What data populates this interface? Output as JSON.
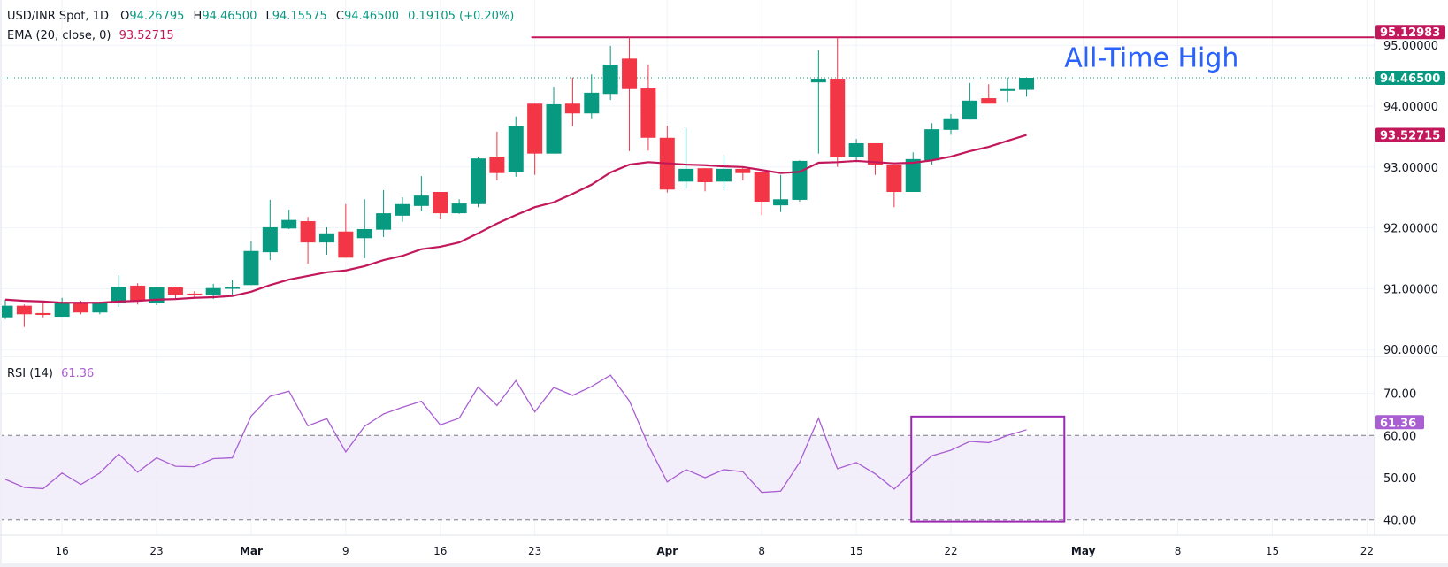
{
  "header": {
    "symbol": "USD/INR Spot, 1D",
    "ohlc": [
      {
        "key": "O",
        "value": "94.26795"
      },
      {
        "key": "H",
        "value": "94.46500"
      },
      {
        "key": "L",
        "value": "94.15575"
      },
      {
        "key": "C",
        "value": "94.46500"
      }
    ],
    "change": "0.19105 (+0.20%)"
  },
  "ema_legend": {
    "label": "EMA (20, close, 0)",
    "value": "93.52715"
  },
  "rsi_legend": {
    "label": "RSI (14)",
    "value": "61.36"
  },
  "colors": {
    "up": "#089981",
    "down": "#F23645",
    "ema": "#C2185B",
    "rsi": "#A95ED1",
    "rsi_band": "#F0ECF9",
    "box": "#9C27B0",
    "annotation_text": "#2962FF",
    "grid": "#F0F3FA"
  },
  "chart_data": {
    "type": "candlestick",
    "price_axis": {
      "ticks": [
        "95.00000",
        "94.00000",
        "93.00000",
        "92.00000",
        "91.00000",
        "90.00000"
      ],
      "range": [
        89.9,
        95.3
      ]
    },
    "rsi_axis": {
      "ticks": [
        "70.00",
        "60.00",
        "50.00",
        "40.00"
      ],
      "bands": [
        40,
        60
      ]
    },
    "x_ticks": [
      {
        "label": "16",
        "date": "Feb 16",
        "bold": false
      },
      {
        "label": "23",
        "date": "Feb 23",
        "bold": false
      },
      {
        "label": "Mar",
        "date": "Mar 2",
        "bold": true
      },
      {
        "label": "9",
        "date": "Mar 9",
        "bold": false
      },
      {
        "label": "16",
        "date": "Mar 16",
        "bold": false
      },
      {
        "label": "23",
        "date": "Mar 23",
        "bold": false
      },
      {
        "label": "Apr",
        "date": "Apr 1",
        "bold": true
      },
      {
        "label": "8",
        "date": "Apr 8",
        "bold": false
      },
      {
        "label": "15",
        "date": "Apr 15",
        "bold": false
      },
      {
        "label": "22",
        "date": "Apr 22",
        "bold": false
      },
      {
        "label": "May",
        "date": "May 1",
        "bold": true
      },
      {
        "label": "8",
        "date": "May 8",
        "bold": false
      },
      {
        "label": "15",
        "date": "May 15",
        "bold": false
      },
      {
        "label": "22",
        "date": "May 22",
        "bold": false
      }
    ],
    "candles": [
      {
        "d": "Feb 11",
        "o": 90.53,
        "h": 90.82,
        "l": 90.5,
        "c": 90.72
      },
      {
        "d": "Feb 12",
        "o": 90.72,
        "h": 90.74,
        "l": 90.37,
        "c": 90.58
      },
      {
        "d": "Feb 13",
        "o": 90.6,
        "h": 90.76,
        "l": 90.53,
        "c": 90.57
      },
      {
        "d": "Feb 16",
        "o": 90.54,
        "h": 90.85,
        "l": 90.54,
        "c": 90.77
      },
      {
        "d": "Feb 17",
        "o": 90.77,
        "h": 90.8,
        "l": 90.58,
        "c": 90.61
      },
      {
        "d": "Feb 18",
        "o": 90.61,
        "h": 90.79,
        "l": 90.58,
        "c": 90.77
      },
      {
        "d": "Feb 19",
        "o": 90.76,
        "h": 91.22,
        "l": 90.7,
        "c": 91.03
      },
      {
        "d": "Feb 20",
        "o": 91.05,
        "h": 91.09,
        "l": 90.74,
        "c": 90.8
      },
      {
        "d": "Feb 23",
        "o": 90.76,
        "h": 91.02,
        "l": 90.73,
        "c": 91.02
      },
      {
        "d": "Feb 24",
        "o": 91.02,
        "h": 91.03,
        "l": 90.83,
        "c": 90.9
      },
      {
        "d": "Feb 25",
        "o": 90.92,
        "h": 90.96,
        "l": 90.86,
        "c": 90.9
      },
      {
        "d": "Feb 26",
        "o": 90.89,
        "h": 91.08,
        "l": 90.83,
        "c": 91.01
      },
      {
        "d": "Feb 27",
        "o": 91.01,
        "h": 91.14,
        "l": 90.9,
        "c": 91.02
      },
      {
        "d": "Mar 2",
        "o": 91.06,
        "h": 91.78,
        "l": 91.06,
        "c": 91.62
      },
      {
        "d": "Mar 3",
        "o": 91.6,
        "h": 92.46,
        "l": 91.47,
        "c": 92.01
      },
      {
        "d": "Mar 4",
        "o": 91.99,
        "h": 92.3,
        "l": 91.98,
        "c": 92.13
      },
      {
        "d": "Mar 5",
        "o": 92.11,
        "h": 92.18,
        "l": 91.41,
        "c": 91.76
      },
      {
        "d": "Mar 6",
        "o": 91.76,
        "h": 92.01,
        "l": 91.56,
        "c": 91.91
      },
      {
        "d": "Mar 9",
        "o": 91.94,
        "h": 92.39,
        "l": 91.51,
        "c": 91.51
      },
      {
        "d": "Mar 10",
        "o": 91.83,
        "h": 92.47,
        "l": 91.5,
        "c": 91.98
      },
      {
        "d": "Mar 11",
        "o": 91.97,
        "h": 92.62,
        "l": 91.85,
        "c": 92.24
      },
      {
        "d": "Mar 12",
        "o": 92.2,
        "h": 92.5,
        "l": 92.1,
        "c": 92.39
      },
      {
        "d": "Mar 13",
        "o": 92.36,
        "h": 92.85,
        "l": 92.28,
        "c": 92.53
      },
      {
        "d": "Mar 16",
        "o": 92.59,
        "h": 92.59,
        "l": 92.14,
        "c": 92.24
      },
      {
        "d": "Mar 17",
        "o": 92.24,
        "h": 92.47,
        "l": 92.23,
        "c": 92.4
      },
      {
        "d": "Mar 18",
        "o": 92.39,
        "h": 93.16,
        "l": 92.34,
        "c": 93.14
      },
      {
        "d": "Mar 19",
        "o": 93.17,
        "h": 93.58,
        "l": 92.78,
        "c": 92.9
      },
      {
        "d": "Mar 20",
        "o": 92.91,
        "h": 93.83,
        "l": 92.84,
        "c": 93.67
      },
      {
        "d": "Mar 23",
        "o": 94.04,
        "h": 94.04,
        "l": 92.87,
        "c": 93.22
      },
      {
        "d": "Mar 24",
        "o": 93.22,
        "h": 94.32,
        "l": 93.22,
        "c": 94.03
      },
      {
        "d": "Mar 25",
        "o": 94.04,
        "h": 94.47,
        "l": 93.67,
        "c": 93.88
      },
      {
        "d": "Mar 26",
        "o": 93.88,
        "h": 94.52,
        "l": 93.8,
        "c": 94.22
      },
      {
        "d": "Mar 27",
        "o": 94.2,
        "h": 94.99,
        "l": 94.1,
        "c": 94.68
      },
      {
        "d": "Mar 30",
        "o": 94.78,
        "h": 95.13,
        "l": 93.26,
        "c": 94.28
      },
      {
        "d": "Mar 31",
        "o": 94.29,
        "h": 94.68,
        "l": 93.27,
        "c": 93.48
      },
      {
        "d": "Apr 1",
        "o": 93.48,
        "h": 93.68,
        "l": 92.58,
        "c": 92.63
      },
      {
        "d": "Apr 2",
        "o": 92.76,
        "h": 93.64,
        "l": 92.65,
        "c": 92.97
      },
      {
        "d": "Apr 3",
        "o": 92.98,
        "h": 92.98,
        "l": 92.6,
        "c": 92.75
      },
      {
        "d": "Apr 6",
        "o": 92.76,
        "h": 93.19,
        "l": 92.62,
        "c": 92.97
      },
      {
        "d": "Apr 7",
        "o": 92.97,
        "h": 93.0,
        "l": 92.78,
        "c": 92.9
      },
      {
        "d": "Apr 8",
        "o": 92.91,
        "h": 92.91,
        "l": 92.21,
        "c": 92.43
      },
      {
        "d": "Apr 9",
        "o": 92.37,
        "h": 92.87,
        "l": 92.26,
        "c": 92.47
      },
      {
        "d": "Apr 10",
        "o": 92.46,
        "h": 93.11,
        "l": 92.43,
        "c": 93.1
      },
      {
        "d": "Apr 13",
        "o": 94.39,
        "h": 94.92,
        "l": 93.22,
        "c": 94.45
      },
      {
        "d": "Apr 14",
        "o": 94.45,
        "h": 95.13,
        "l": 93.0,
        "c": 93.16
      },
      {
        "d": "Apr 15",
        "o": 93.16,
        "h": 93.46,
        "l": 93.08,
        "c": 93.39
      },
      {
        "d": "Apr 16",
        "o": 93.39,
        "h": 93.39,
        "l": 92.87,
        "c": 93.04
      },
      {
        "d": "Apr 17",
        "o": 93.04,
        "h": 93.04,
        "l": 92.34,
        "c": 92.59
      },
      {
        "d": "Apr 20",
        "o": 92.59,
        "h": 93.24,
        "l": 92.59,
        "c": 93.13
      },
      {
        "d": "Apr 21",
        "o": 93.11,
        "h": 93.72,
        "l": 93.04,
        "c": 93.62
      },
      {
        "d": "Apr 22",
        "o": 93.61,
        "h": 93.87,
        "l": 93.53,
        "c": 93.8
      },
      {
        "d": "Apr 23",
        "o": 93.78,
        "h": 94.38,
        "l": 93.78,
        "c": 94.09
      },
      {
        "d": "Apr 24",
        "o": 94.13,
        "h": 94.36,
        "l": 94.04,
        "c": 94.04
      },
      {
        "d": "Apr 27",
        "o": 94.25,
        "h": 94.47,
        "l": 94.07,
        "c": 94.28
      },
      {
        "d": "Apr 28",
        "o": 94.26795,
        "h": 94.465,
        "l": 94.15575,
        "c": 94.465
      }
    ],
    "ema": [
      90.82,
      90.8,
      90.79,
      90.77,
      90.77,
      90.77,
      90.79,
      90.8,
      90.82,
      90.83,
      90.85,
      90.86,
      90.88,
      90.95,
      91.06,
      91.15,
      91.21,
      91.27,
      91.3,
      91.37,
      91.47,
      91.54,
      91.65,
      91.69,
      91.76,
      91.91,
      92.07,
      92.21,
      92.34,
      92.42,
      92.56,
      92.71,
      92.91,
      93.04,
      93.08,
      93.06,
      93.04,
      93.03,
      93.01,
      93.0,
      92.95,
      92.9,
      92.92,
      93.07,
      93.08,
      93.1,
      93.08,
      93.06,
      93.07,
      93.11,
      93.17,
      93.26,
      93.33,
      93.43,
      93.52715
    ],
    "rsi": [
      49.6,
      47.7,
      47.4,
      51.1,
      48.4,
      51.1,
      55.6,
      51.3,
      54.7,
      52.7,
      52.6,
      54.5,
      54.7,
      64.6,
      69.3,
      70.5,
      62.3,
      64.0,
      56.1,
      62.2,
      65.1,
      66.7,
      68.1,
      62.5,
      64.1,
      71.5,
      67.1,
      73.0,
      65.6,
      71.4,
      69.5,
      71.6,
      74.3,
      68.2,
      57.7,
      49.0,
      51.9,
      50.0,
      51.9,
      51.4,
      46.5,
      46.8,
      53.6,
      64.1,
      52.1,
      53.6,
      50.9,
      47.3,
      51.4,
      55.2,
      56.5,
      58.6,
      58.3,
      60.0,
      61.36
    ],
    "last_price": {
      "value": 94.465,
      "label": "94.46500"
    },
    "ema_last": {
      "value": 93.52715,
      "label": "93.52715"
    },
    "rsi_last": {
      "value": 61.36,
      "label": "61.36"
    },
    "annotations": {
      "ath_line": {
        "price": 95.12983,
        "label": "95.12983",
        "from": "Mar 23"
      },
      "ath_text": {
        "text": "All-Time High",
        "price": 94.81,
        "date": "Apr 30"
      },
      "rsi_box": {
        "from": "Apr 20",
        "to": "Apr 30",
        "rsi_low": 39.6,
        "rsi_high": 64.5
      }
    }
  }
}
